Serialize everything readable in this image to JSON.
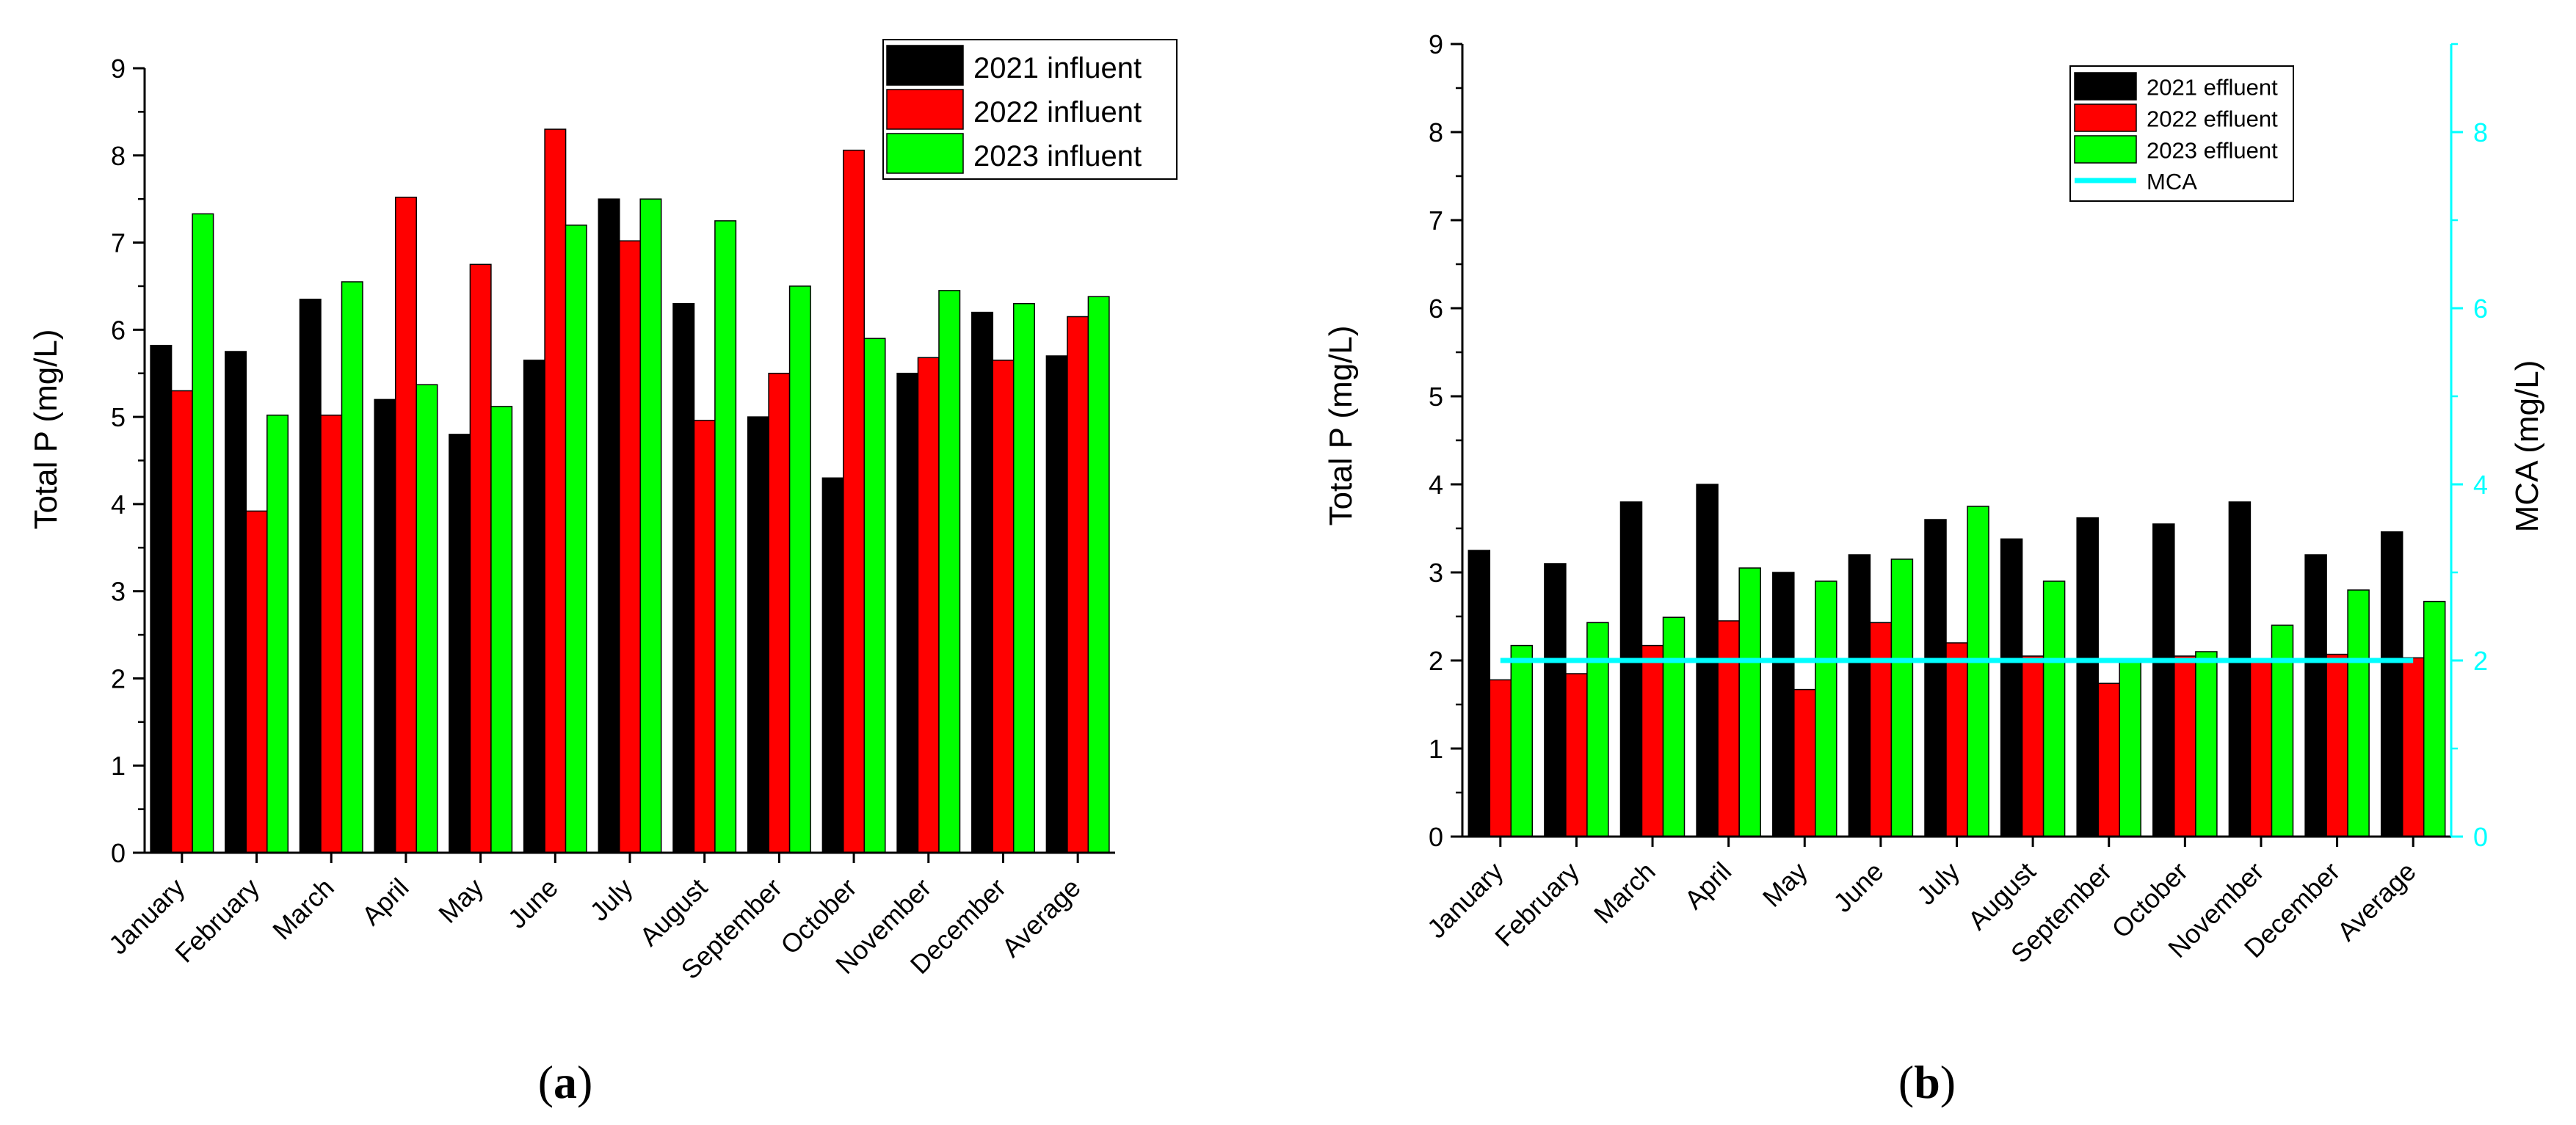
{
  "colors": {
    "s2021": "#000000",
    "s2022": "#ff0000",
    "s2023": "#00ff00",
    "mca": "#00ffff",
    "axis": "#000000"
  },
  "panel_labels": {
    "a": {
      "open": "(",
      "letter": "a",
      "close": ")"
    },
    "b": {
      "open": "(",
      "letter": "b",
      "close": ")"
    }
  },
  "chart_data": [
    {
      "type": "bar",
      "ylabel": "Total P (mg/L)",
      "xlabel": "",
      "ylim": [
        0,
        9
      ],
      "yticks": [
        "0",
        "1",
        "2",
        "3",
        "4",
        "5",
        "6",
        "7",
        "8",
        "9"
      ],
      "categories": [
        "January",
        "February",
        "March",
        "April",
        "May",
        "June",
        "July",
        "August",
        "September",
        "October",
        "November",
        "December",
        "Average"
      ],
      "series": [
        {
          "name": "2021 influent",
          "values": [
            5.82,
            5.75,
            6.35,
            5.2,
            4.8,
            5.65,
            7.5,
            6.3,
            5.0,
            4.3,
            5.5,
            6.2,
            5.7
          ]
        },
        {
          "name": "2022 influent",
          "values": [
            5.3,
            3.92,
            5.02,
            7.52,
            6.75,
            8.3,
            7.02,
            4.96,
            5.5,
            8.06,
            5.68,
            5.65,
            6.15
          ]
        },
        {
          "name": "2023 influent",
          "values": [
            7.33,
            5.02,
            6.55,
            5.37,
            5.12,
            7.2,
            7.5,
            7.25,
            6.5,
            5.9,
            6.45,
            6.3,
            6.38
          ]
        }
      ],
      "legend_position": "top-right"
    },
    {
      "type": "bar",
      "ylabel": "Total P (mg/L)",
      "y2label": "MCA (mg/L)",
      "xlabel": "",
      "ylim": [
        0,
        9
      ],
      "yticks": [
        "0",
        "1",
        "2",
        "3",
        "4",
        "5",
        "6",
        "7",
        "8",
        "9"
      ],
      "y2lim": [
        0,
        9
      ],
      "y2ticks": [
        "0",
        "2",
        "4",
        "6",
        "8"
      ],
      "categories": [
        "January",
        "February",
        "March",
        "April",
        "May",
        "June",
        "July",
        "August",
        "September",
        "October",
        "November",
        "December",
        "Average"
      ],
      "series": [
        {
          "name": "2021 effluent",
          "values": [
            3.25,
            3.1,
            3.8,
            4.0,
            3.0,
            3.2,
            3.6,
            3.38,
            3.62,
            3.55,
            3.8,
            3.2,
            3.46
          ]
        },
        {
          "name": "2022 effluent",
          "values": [
            1.78,
            1.85,
            2.17,
            2.45,
            1.67,
            2.43,
            2.2,
            2.05,
            1.74,
            2.05,
            2.0,
            2.07,
            2.03
          ]
        },
        {
          "name": "2023 effluent",
          "values": [
            2.17,
            2.43,
            2.49,
            3.05,
            2.9,
            3.15,
            3.75,
            2.9,
            2.0,
            2.1,
            2.4,
            2.8,
            2.67
          ]
        }
      ],
      "lines": [
        {
          "name": "MCA",
          "value": 2.0,
          "axis": "y2"
        }
      ],
      "legend_position": "top-right"
    }
  ]
}
